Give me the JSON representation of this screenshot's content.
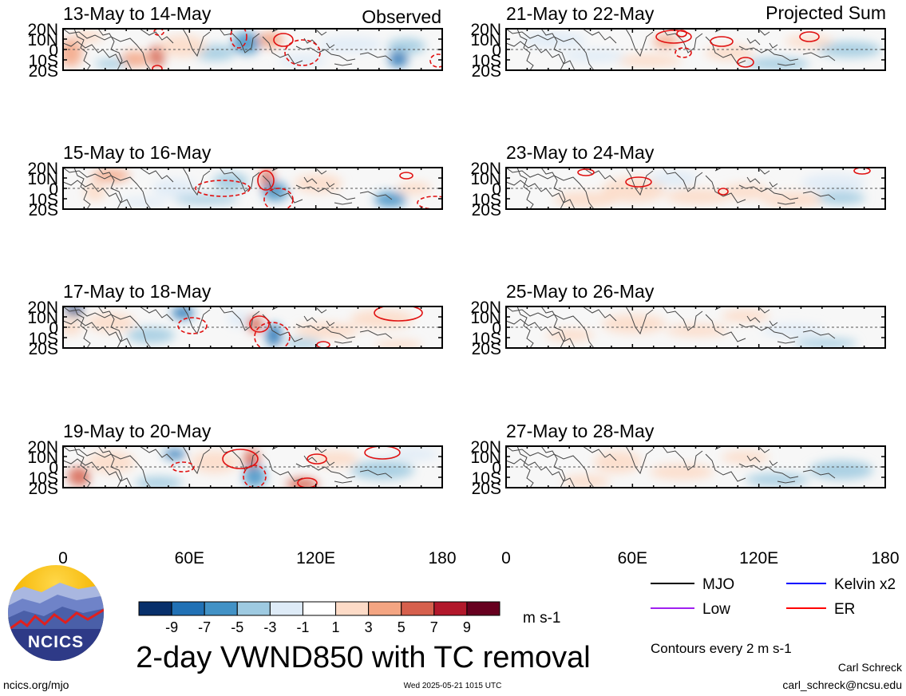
{
  "header": {
    "left_label": "Observed",
    "right_label": "Projected Sum"
  },
  "panels": {
    "observed": [
      {
        "title": "13-May to 14-May"
      },
      {
        "title": "15-May to 16-May"
      },
      {
        "title": "17-May to 18-May"
      },
      {
        "title": "19-May to 20-May"
      }
    ],
    "projected": [
      {
        "title": "21-May to 22-May"
      },
      {
        "title": "23-May to 24-May"
      },
      {
        "title": "25-May to 26-May"
      },
      {
        "title": "27-May to 28-May"
      }
    ]
  },
  "axes": {
    "lat_ticks": [
      "20N",
      "10N",
      "0",
      "10S",
      "20S"
    ],
    "lon_ticks": [
      "0",
      "60E",
      "120E",
      "180"
    ]
  },
  "colorbar": {
    "ticks": [
      "-9",
      "-7",
      "-5",
      "-3",
      "-1",
      "1",
      "3",
      "5",
      "7",
      "9"
    ],
    "colors": [
      "#08306b",
      "#2171b5",
      "#4292c6",
      "#9ecae1",
      "#deebf7",
      "#ffffff",
      "#fddbc7",
      "#f4a582",
      "#d6604d",
      "#b2182b",
      "#67001f"
    ],
    "units": "m s-1"
  },
  "legend": {
    "items": [
      {
        "label": "MJO",
        "color": "#000000"
      },
      {
        "label": "Kelvin x2",
        "color": "#0000ff"
      },
      {
        "label": "Low",
        "color": "#a020f0"
      },
      {
        "label": "ER",
        "color": "#ff0000"
      }
    ],
    "note": "Contours every 2 m s-1"
  },
  "logo": {
    "text": "NCICS"
  },
  "footer": {
    "title": "2-day VWND850 with TC removal",
    "url": "ncics.org/mjo",
    "timestamp": "Wed 2025-05-21 1015 UTC",
    "author": "Carl Schreck",
    "email": "carl_schreck@ncsu.edu"
  }
}
